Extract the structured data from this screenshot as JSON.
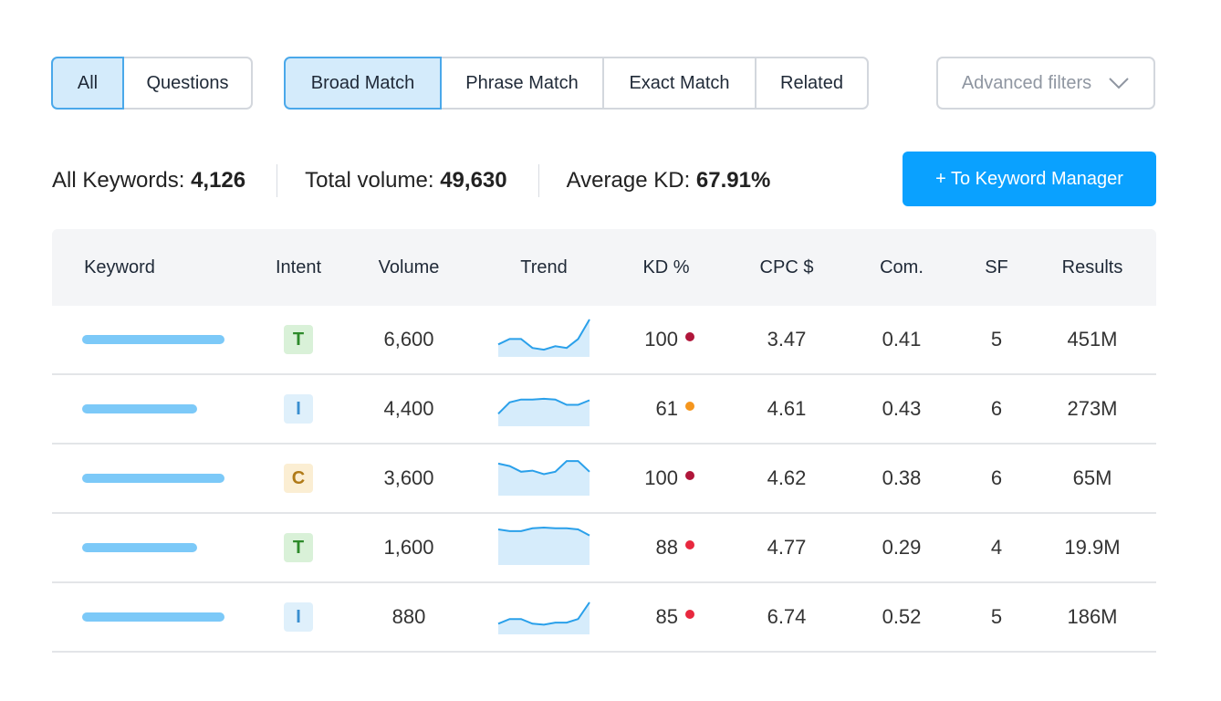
{
  "filters": {
    "group1": [
      {
        "label": "All",
        "active": true
      },
      {
        "label": "Questions",
        "active": false
      }
    ],
    "group2": [
      {
        "label": "Broad Match",
        "active": true
      },
      {
        "label": "Phrase Match",
        "active": false
      },
      {
        "label": "Exact Match",
        "active": false
      },
      {
        "label": "Related",
        "active": false
      }
    ],
    "advanced_label": "Advanced filters"
  },
  "stats": {
    "all_keywords_label": "All Keywords:",
    "all_keywords_value": "4,126",
    "total_volume_label": "Total volume:",
    "total_volume_value": "49,630",
    "avg_kd_label": "Average KD:",
    "avg_kd_value": "67.91%"
  },
  "manager_button": "+ To Keyword Manager",
  "table": {
    "columns": [
      "Keyword",
      "Intent",
      "Volume",
      "Trend",
      "KD %",
      "CPC $",
      "Com.",
      "SF",
      "Results"
    ],
    "rows": [
      {
        "keyword_level": 1.0,
        "intent": "T",
        "volume": "6,600",
        "trend": [
          0.3,
          0.45,
          0.45,
          0.2,
          0.15,
          0.25,
          0.2,
          0.45,
          1.0
        ],
        "kd": "100",
        "kd_color": "#b0163a",
        "cpc": "3.47",
        "com": "0.41",
        "sf": "5",
        "results": "451M"
      },
      {
        "keyword_level": 0.81,
        "intent": "I",
        "volume": "4,400",
        "trend": [
          0.3,
          0.62,
          0.7,
          0.7,
          0.72,
          0.7,
          0.55,
          0.55,
          0.68
        ],
        "kd": "61",
        "kd_color": "#f5961d",
        "cpc": "4.61",
        "com": "0.43",
        "sf": "6",
        "results": "273M"
      },
      {
        "keyword_level": 1.0,
        "intent": "C",
        "volume": "3,600",
        "trend": [
          0.85,
          0.78,
          0.62,
          0.65,
          0.55,
          0.62,
          0.92,
          0.92,
          0.62
        ],
        "kd": "100",
        "kd_color": "#b0163a",
        "cpc": "4.62",
        "com": "0.38",
        "sf": "6",
        "results": "65M"
      },
      {
        "keyword_level": 0.81,
        "intent": "T",
        "volume": "1,600",
        "trend": [
          0.95,
          0.9,
          0.9,
          0.98,
          1.0,
          0.98,
          0.98,
          0.95,
          0.78
        ],
        "kd": "88",
        "kd_color": "#e8283e",
        "cpc": "4.77",
        "com": "0.29",
        "sf": "4",
        "results": "19.9M"
      },
      {
        "keyword_level": 1.0,
        "intent": "I",
        "volume": "880",
        "trend": [
          0.25,
          0.38,
          0.38,
          0.25,
          0.22,
          0.28,
          0.28,
          0.38,
          0.85
        ],
        "kd": "85",
        "kd_color": "#e8283e",
        "cpc": "6.74",
        "com": "0.52",
        "sf": "5",
        "results": "186M"
      }
    ]
  },
  "intent_colors": {
    "T": {
      "bg": "#d9f1d8",
      "fg": "#2d8a2a"
    },
    "I": {
      "bg": "#dff0fb",
      "fg": "#3a8fd0"
    },
    "C": {
      "bg": "#fbeed3",
      "fg": "#b07a17"
    }
  },
  "colors": {
    "accent": "#0aa1ff",
    "trend_line": "#2aa0ea",
    "trend_fill": "#d6ecfb"
  }
}
